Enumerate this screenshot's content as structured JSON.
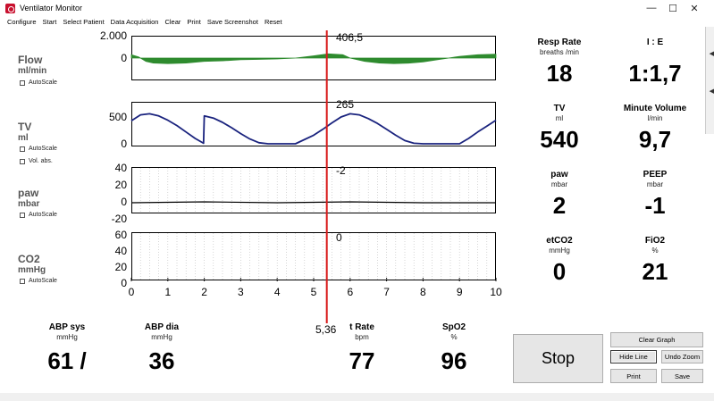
{
  "window": {
    "title": "Ventilator Monitor",
    "controls": [
      "—",
      "☐",
      "✕"
    ]
  },
  "menu": [
    "Configure",
    "Start",
    "Select Patient",
    "Data Acquisition",
    "Clear",
    "Print",
    "Save Screenshot",
    "Reset"
  ],
  "panels": [
    {
      "name": "Flow",
      "unit": "ml/min",
      "checkboxes": [
        "AutoScale"
      ],
      "yticks": [
        "2.000",
        "0"
      ],
      "cursor_value": "406,5"
    },
    {
      "name": "TV",
      "unit": "ml",
      "checkboxes": [
        "AutoScale",
        "Vol. abs."
      ],
      "yticks": [
        "500",
        "0"
      ],
      "cursor_value": "265"
    },
    {
      "name": "paw",
      "unit": "mbar",
      "checkboxes": [
        "AutoScale"
      ],
      "yticks": [
        "40",
        "20",
        "0",
        "-20"
      ],
      "cursor_value": "-2"
    },
    {
      "name": "CO2",
      "unit": "mmHg",
      "checkboxes": [
        "AutoScale"
      ],
      "yticks": [
        "60",
        "40",
        "20",
        "0"
      ],
      "cursor_value": "0"
    }
  ],
  "x_axis": {
    "ticks": [
      "0",
      "1",
      "2",
      "3",
      "4",
      "5",
      "6",
      "7",
      "8",
      "9",
      "10"
    ],
    "cursor_x": "5,36"
  },
  "cursor": {
    "x": 5.36,
    "color": "#d81a1a"
  },
  "colors": {
    "flow_fill": "#2e8b2e",
    "tv_line": "#1a237e",
    "paw_line": "#000000"
  },
  "tv_trace": {
    "x": [
      0,
      0.25,
      0.5,
      0.75,
      1.0,
      1.25,
      1.5,
      1.75,
      1.98,
      2.0,
      2.25,
      2.5,
      2.75,
      3.0,
      3.25,
      3.5,
      3.75,
      4.0,
      4.5,
      5.0,
      5.25,
      5.5,
      5.75,
      6.0,
      6.25,
      6.5,
      6.75,
      7.0,
      7.25,
      7.5,
      7.75,
      8.0,
      8.5,
      9.0,
      9.25,
      9.5,
      9.75,
      10.0
    ],
    "y": [
      430,
      540,
      560,
      520,
      440,
      340,
      220,
      100,
      10,
      520,
      480,
      400,
      300,
      190,
      90,
      20,
      0,
      0,
      0,
      160,
      270,
      390,
      500,
      560,
      540,
      470,
      380,
      270,
      160,
      60,
      10,
      0,
      0,
      0,
      100,
      220,
      330,
      440
    ]
  },
  "flow_trace": {
    "x": [
      0,
      0.2,
      0.4,
      0.6,
      1.0,
      1.5,
      2.0,
      2.5,
      3.0,
      3.5,
      4.0,
      4.5,
      5.0,
      5.4,
      5.8,
      6.0,
      6.4,
      6.8,
      7.2,
      7.6,
      8.0,
      8.5,
      9.0,
      9.5,
      10.0
    ],
    "y": [
      300,
      100,
      -300,
      -450,
      -500,
      -450,
      -300,
      -250,
      -150,
      -120,
      -80,
      0,
      200,
      380,
      300,
      0,
      -300,
      -450,
      -500,
      -460,
      -350,
      -100,
      150,
      300,
      350
    ]
  },
  "metrics": [
    {
      "name": "Resp Rate",
      "unit": "breaths /min",
      "value": "18"
    },
    {
      "name": "I : E",
      "unit": "",
      "value": "1:1,7"
    },
    {
      "name": "TV",
      "unit": "ml",
      "value": "540"
    },
    {
      "name": "Minute Volume",
      "unit": "l/min",
      "value": "9,7"
    },
    {
      "name": "paw",
      "unit": "mbar",
      "value": "2"
    },
    {
      "name": "PEEP",
      "unit": "mbar",
      "value": "-1"
    },
    {
      "name": "etCO2",
      "unit": "mmHg",
      "value": "0"
    },
    {
      "name": "FiO2",
      "unit": "%",
      "value": "21"
    }
  ],
  "bottom_metrics": [
    {
      "name": "ABP sys",
      "unit": "mmHg",
      "value": "61 /"
    },
    {
      "name": "ABP dia",
      "unit": "mmHg",
      "value": "36"
    },
    {
      "name": "t Rate",
      "unit": "bpm",
      "value": "77"
    },
    {
      "name": "SpO2",
      "unit": "%",
      "value": "96"
    }
  ],
  "buttons": {
    "stop": "Stop",
    "clear_graph": "Clear Graph",
    "hide_line": "Hide Line",
    "undo_zoom": "Undo Zoom",
    "print": "Print",
    "save": "Save"
  }
}
